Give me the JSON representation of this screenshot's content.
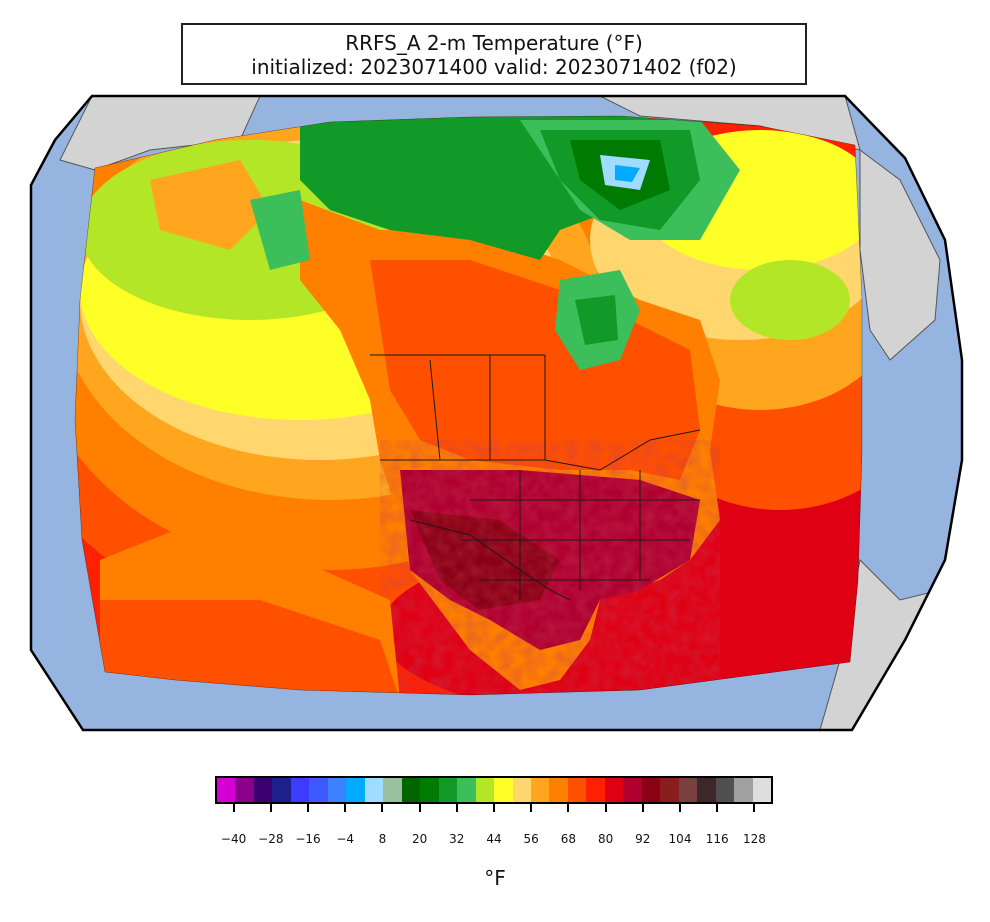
{
  "header": {
    "title_line1": "RRFS_A 2-m Temperature (°F)",
    "title_line2": "initialized: 2023071400 valid: 2023071402 (f02)"
  },
  "map": {
    "projection": "Lambert conformal (North America)",
    "ocean_color": "#95b4e0",
    "land_outside_domain_color": "#d3d3d3",
    "domain_boundary_color": "#000000",
    "border_color": "#1a1a1a"
  },
  "colorbar": {
    "unit_label": "°F",
    "colors": [
      "#d400d4",
      "#8a008a",
      "#3c006e",
      "#1e1e8c",
      "#3c3cff",
      "#3c5aff",
      "#3c82ff",
      "#00aaff",
      "#a0dcff",
      "#98c0a0",
      "#006400",
      "#007a00",
      "#129a28",
      "#3cbe5a",
      "#b4e628",
      "#ffff28",
      "#ffd76e",
      "#ffa61e",
      "#ff7f00",
      "#ff5000",
      "#ff2000",
      "#e00014",
      "#b00030",
      "#8a0014",
      "#8a1e1e",
      "#7a4040",
      "#3c2828",
      "#505050",
      "#a0a0a0",
      "#dedede"
    ],
    "tick_labels": [
      "−40",
      "−28",
      "−16",
      "−4",
      "8",
      "20",
      "32",
      "44",
      "56",
      "68",
      "80",
      "92",
      "104",
      "116",
      "128"
    ]
  }
}
